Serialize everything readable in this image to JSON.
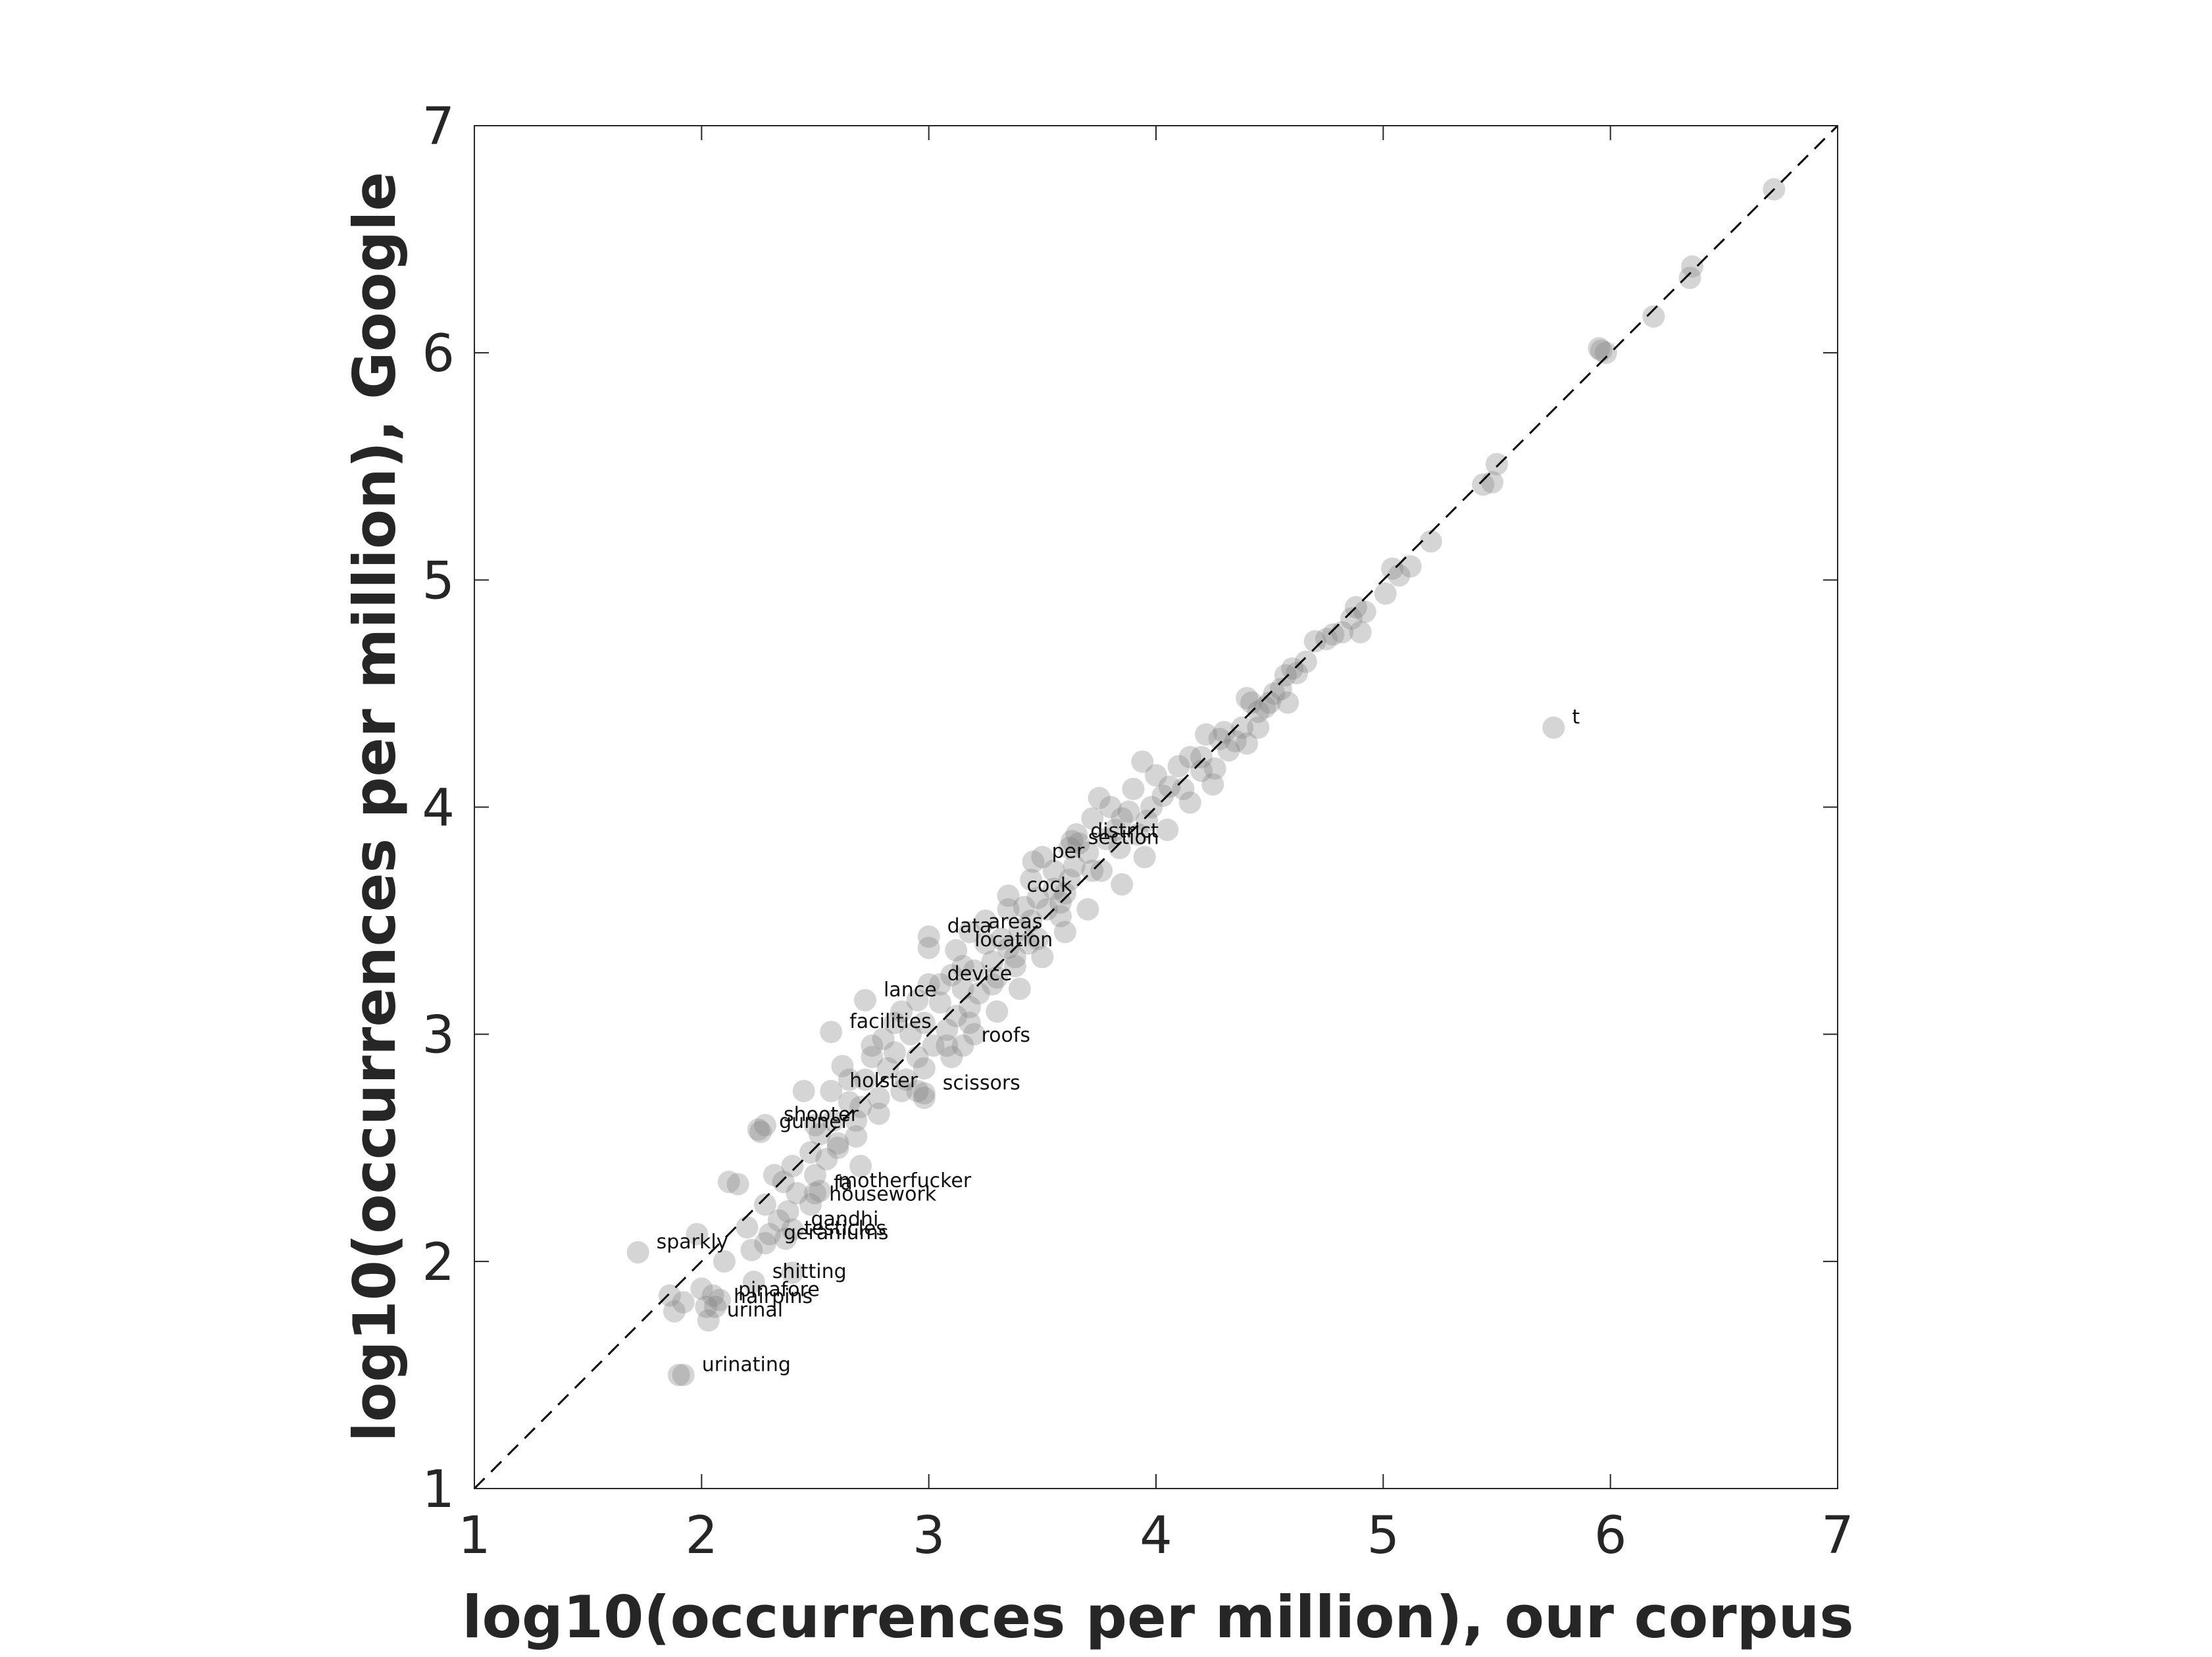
{
  "chart_data": {
    "type": "scatter",
    "xlabel": "log10(occurrences per million), our corpus",
    "ylabel": "log10(occurrences per million), Google",
    "xlim": [
      1,
      7
    ],
    "ylim": [
      1,
      7
    ],
    "xticks": [
      "1",
      "2",
      "3",
      "4",
      "5",
      "6",
      "7"
    ],
    "yticks": [
      "1",
      "2",
      "3",
      "4",
      "5",
      "6",
      "7"
    ],
    "grid": false,
    "reference_line": {
      "from": [
        1,
        1
      ],
      "to": [
        7,
        7
      ],
      "style": "dashed"
    },
    "point_color": "#7f7f7f",
    "labeled_points": [
      {
        "label": "t",
        "x": 5.75,
        "y": 4.35
      },
      {
        "label": "district",
        "x": 3.63,
        "y": 3.85
      },
      {
        "label": "section",
        "x": 3.62,
        "y": 3.82
      },
      {
        "label": "per",
        "x": 3.46,
        "y": 3.76
      },
      {
        "label": "cock",
        "x": 3.35,
        "y": 3.61
      },
      {
        "label": "data",
        "x": 3.0,
        "y": 3.43
      },
      {
        "label": "areas",
        "x": 3.18,
        "y": 3.45
      },
      {
        "label": "location",
        "x": 3.12,
        "y": 3.37
      },
      {
        "label": "device",
        "x": 3.0,
        "y": 3.22
      },
      {
        "label": "lance",
        "x": 2.72,
        "y": 3.15
      },
      {
        "label": "facilities",
        "x": 2.57,
        "y": 3.01
      },
      {
        "label": "roofs",
        "x": 3.15,
        "y": 2.95
      },
      {
        "label": "holster",
        "x": 2.57,
        "y": 2.75
      },
      {
        "label": "scissors",
        "x": 2.98,
        "y": 2.74
      },
      {
        "label": "shooter",
        "x": 2.28,
        "y": 2.6
      },
      {
        "label": "gunner",
        "x": 2.26,
        "y": 2.57
      },
      {
        "label": "motherfucker",
        "x": 2.52,
        "y": 2.31
      },
      {
        "label": "fa",
        "x": 2.5,
        "y": 2.3
      },
      {
        "label": "housework",
        "x": 2.48,
        "y": 2.25
      },
      {
        "label": "gandhi",
        "x": 2.4,
        "y": 2.14
      },
      {
        "label": "testicles",
        "x": 2.37,
        "y": 2.1
      },
      {
        "label": "geraniums",
        "x": 2.28,
        "y": 2.08
      },
      {
        "label": "sparkly",
        "x": 1.72,
        "y": 2.04
      },
      {
        "label": "shitting",
        "x": 2.23,
        "y": 1.91
      },
      {
        "label": "pinafore",
        "x": 2.08,
        "y": 1.83
      },
      {
        "label": "hairpins",
        "x": 2.06,
        "y": 1.8
      },
      {
        "label": "urinal",
        "x": 2.03,
        "y": 1.74
      },
      {
        "label": "urinating",
        "x": 1.92,
        "y": 1.5
      }
    ],
    "points": [
      [
        6.72,
        6.72
      ],
      [
        6.36,
        6.38
      ],
      [
        6.35,
        6.33
      ],
      [
        6.19,
        6.16
      ],
      [
        5.96,
        6.01
      ],
      [
        5.98,
        6.0
      ],
      [
        5.95,
        6.02
      ],
      [
        5.5,
        5.51
      ],
      [
        5.48,
        5.43
      ],
      [
        5.44,
        5.42
      ],
      [
        5.21,
        5.17
      ],
      [
        5.12,
        5.06
      ],
      [
        5.07,
        5.02
      ],
      [
        5.04,
        5.05
      ],
      [
        5.01,
        4.94
      ],
      [
        4.92,
        4.86
      ],
      [
        4.88,
        4.88
      ],
      [
        4.86,
        4.83
      ],
      [
        4.82,
        4.77
      ],
      [
        4.78,
        4.76
      ],
      [
        4.9,
        4.77
      ],
      [
        4.75,
        4.74
      ],
      [
        4.7,
        4.73
      ],
      [
        4.62,
        4.59
      ],
      [
        4.66,
        4.64
      ],
      [
        4.6,
        4.61
      ],
      [
        4.57,
        4.58
      ],
      [
        4.55,
        4.52
      ],
      [
        4.58,
        4.46
      ],
      [
        4.5,
        4.46
      ],
      [
        4.48,
        4.44
      ],
      [
        4.42,
        4.46
      ],
      [
        4.4,
        4.48
      ],
      [
        4.45,
        4.35
      ],
      [
        4.38,
        4.35
      ],
      [
        4.3,
        4.33
      ],
      [
        4.35,
        4.29
      ],
      [
        4.28,
        4.3
      ],
      [
        4.22,
        4.32
      ],
      [
        4.26,
        4.17
      ],
      [
        4.2,
        4.22
      ],
      [
        4.2,
        4.16
      ],
      [
        4.15,
        4.22
      ],
      [
        4.1,
        4.18
      ],
      [
        4.12,
        4.08
      ],
      [
        4.06,
        4.09
      ],
      [
        4.0,
        4.14
      ],
      [
        4.03,
        4.05
      ],
      [
        3.94,
        4.2
      ],
      [
        3.98,
        4.0
      ],
      [
        3.9,
        4.08
      ],
      [
        3.96,
        3.94
      ],
      [
        3.88,
        3.98
      ],
      [
        3.92,
        3.88
      ],
      [
        3.85,
        3.95
      ],
      [
        3.82,
        3.9
      ],
      [
        3.8,
        4.0
      ],
      [
        3.78,
        3.86
      ],
      [
        3.75,
        4.04
      ],
      [
        3.72,
        3.95
      ],
      [
        3.7,
        3.8
      ],
      [
        3.76,
        3.72
      ],
      [
        3.84,
        3.82
      ],
      [
        3.66,
        3.84
      ],
      [
        3.64,
        3.74
      ],
      [
        3.6,
        3.62
      ],
      [
        3.62,
        3.68
      ],
      [
        3.58,
        3.58
      ],
      [
        3.55,
        3.64
      ],
      [
        3.52,
        3.55
      ],
      [
        3.5,
        3.78
      ],
      [
        3.48,
        3.6
      ],
      [
        3.45,
        3.5
      ],
      [
        3.42,
        3.56
      ],
      [
        3.4,
        3.46
      ],
      [
        3.44,
        3.4
      ],
      [
        3.38,
        3.3
      ],
      [
        3.35,
        3.38
      ],
      [
        3.32,
        3.42
      ],
      [
        3.3,
        3.25
      ],
      [
        3.28,
        3.32
      ],
      [
        3.25,
        3.5
      ],
      [
        3.22,
        3.18
      ],
      [
        3.2,
        3.28
      ],
      [
        3.18,
        3.12
      ],
      [
        3.15,
        3.2
      ],
      [
        3.12,
        3.08
      ],
      [
        3.1,
        3.26
      ],
      [
        3.08,
        3.02
      ],
      [
        3.05,
        3.14
      ],
      [
        3.02,
        2.95
      ],
      [
        3.0,
        3.38
      ],
      [
        2.98,
        3.05
      ],
      [
        2.95,
        2.9
      ],
      [
        2.92,
        3.0
      ],
      [
        2.9,
        2.8
      ],
      [
        2.88,
        3.1
      ],
      [
        2.85,
        2.92
      ],
      [
        2.82,
        2.85
      ],
      [
        2.8,
        2.98
      ],
      [
        2.78,
        2.72
      ],
      [
        2.75,
        2.9
      ],
      [
        2.72,
        2.8
      ],
      [
        2.7,
        2.68
      ],
      [
        2.68,
        2.62
      ],
      [
        2.65,
        2.7
      ],
      [
        2.62,
        2.86
      ],
      [
        2.6,
        2.52
      ],
      [
        2.58,
        2.62
      ],
      [
        2.55,
        2.45
      ],
      [
        2.52,
        2.56
      ],
      [
        2.5,
        2.38
      ],
      [
        2.48,
        2.48
      ],
      [
        2.45,
        2.75
      ],
      [
        2.42,
        2.3
      ],
      [
        2.4,
        2.42
      ],
      [
        2.38,
        2.22
      ],
      [
        2.36,
        2.35
      ],
      [
        2.34,
        2.18
      ],
      [
        2.32,
        2.38
      ],
      [
        2.3,
        2.12
      ],
      [
        2.28,
        2.25
      ],
      [
        2.25,
        2.58
      ],
      [
        2.22,
        2.05
      ],
      [
        2.2,
        2.15
      ],
      [
        2.16,
        2.34
      ],
      [
        2.12,
        2.35
      ],
      [
        2.1,
        2.0
      ],
      [
        2.05,
        1.85
      ],
      [
        2.02,
        1.8
      ],
      [
        2.0,
        1.88
      ],
      [
        1.98,
        2.12
      ],
      [
        1.92,
        1.82
      ],
      [
        1.88,
        1.78
      ],
      [
        1.86,
        1.85
      ],
      [
        1.9,
        1.5
      ],
      [
        2.4,
        1.95
      ],
      [
        2.5,
        2.6
      ],
      [
        2.6,
        2.5
      ],
      [
        2.7,
        2.42
      ],
      [
        2.95,
        2.75
      ],
      [
        2.98,
        2.72
      ],
      [
        3.1,
        2.9
      ],
      [
        3.2,
        3.0
      ],
      [
        3.3,
        3.1
      ],
      [
        3.4,
        3.2
      ],
      [
        3.5,
        3.34
      ],
      [
        3.6,
        3.45
      ],
      [
        3.7,
        3.55
      ],
      [
        3.85,
        3.66
      ],
      [
        3.95,
        3.78
      ],
      [
        4.05,
        3.9
      ],
      [
        4.15,
        4.02
      ],
      [
        3.35,
        3.55
      ],
      [
        3.25,
        3.4
      ],
      [
        3.15,
        3.3
      ],
      [
        3.05,
        3.22
      ],
      [
        2.95,
        3.15
      ],
      [
        2.85,
        3.05
      ],
      [
        2.75,
        2.95
      ],
      [
        2.65,
        2.8
      ],
      [
        3.45,
        3.68
      ],
      [
        3.55,
        3.72
      ],
      [
        3.65,
        3.88
      ],
      [
        3.72,
        3.72
      ],
      [
        3.58,
        3.52
      ],
      [
        3.48,
        3.42
      ],
      [
        3.38,
        3.34
      ],
      [
        3.28,
        3.22
      ],
      [
        3.18,
        3.05
      ],
      [
        3.08,
        2.95
      ],
      [
        2.98,
        2.85
      ],
      [
        2.88,
        2.75
      ],
      [
        2.78,
        2.65
      ],
      [
        2.68,
        2.55
      ],
      [
        4.25,
        4.1
      ],
      [
        4.32,
        4.25
      ],
      [
        4.4,
        4.28
      ],
      [
        4.45,
        4.42
      ],
      [
        4.52,
        4.5
      ]
    ]
  }
}
